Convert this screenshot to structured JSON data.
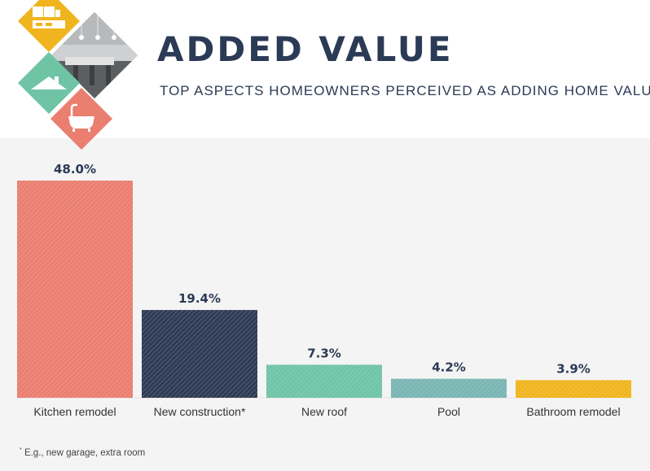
{
  "header": {
    "title": "ADDED VALUE",
    "subtitle": "TOP ASPECTS HOMEOWNERS PERCEIVED AS ADDING HOME VALUE",
    "icons": [
      "kitchen-icon",
      "kitchen-photo",
      "roof-icon",
      "bathtub-icon"
    ]
  },
  "colors": {
    "title": "#2b3a55",
    "tile_yellow": "#f0b51e",
    "tile_green": "#6fc4a6",
    "tile_coral": "#ea7e6f",
    "panel_bg": "#f4f4f4"
  },
  "chart_data": {
    "type": "bar",
    "title": "ADDED VALUE",
    "subtitle": "TOP ASPECTS HOMEOWNERS PERCEIVED AS ADDING HOME VALUE",
    "categories": [
      "Kitchen remodel",
      "New construction*",
      "New roof",
      "Pool",
      "Bathroom remodel"
    ],
    "values": [
      48.0,
      19.4,
      7.3,
      4.2,
      3.9
    ],
    "value_labels": [
      "48.0%",
      "19.4%",
      "7.3%",
      "4.2%",
      "3.9%"
    ],
    "bar_colors": [
      "#ea7e6f",
      "#2f3b55",
      "#6fc4a6",
      "#79b5b3",
      "#f0b51e"
    ],
    "ylim": [
      0,
      48
    ],
    "xlabel": "",
    "ylabel": "",
    "grid": false,
    "legend": "none"
  },
  "footnote": {
    "marker": "*",
    "text": "E.g., new garage, extra room"
  }
}
